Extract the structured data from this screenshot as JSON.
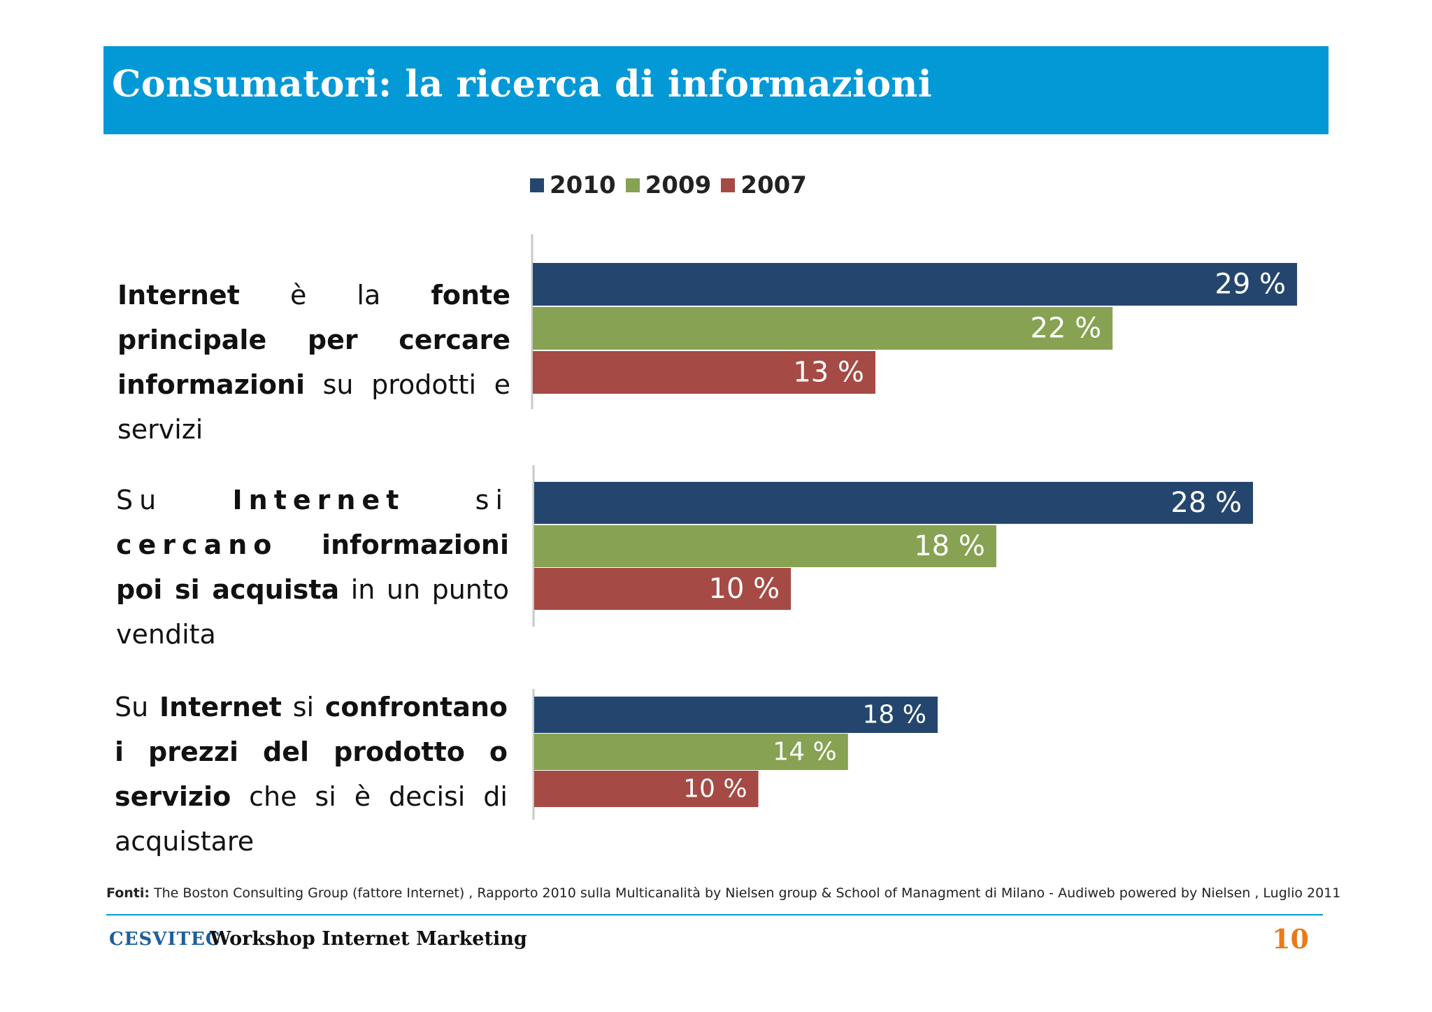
{
  "header": {
    "title": "Consumatori: la ricerca di informazioni"
  },
  "statements": [
    {
      "parts": [
        {
          "t": "Internet",
          "b": true
        },
        {
          "t": " è la ",
          "b": false
        },
        {
          "t": "fonte principale per cercare informazioni",
          "b": true
        },
        {
          "t": " su prodotti e servizi",
          "b": false
        }
      ]
    },
    {
      "parts": [
        {
          "t": "Su ",
          "b": false,
          "s": true
        },
        {
          "t": "Internet",
          "b": true,
          "s": true
        },
        {
          "t": " si ",
          "b": false,
          "s": true
        },
        {
          "t": "cercano",
          "b": true,
          "s": true
        },
        {
          "t": " informazioni poi si acquista",
          "b": true
        },
        {
          "t": " in un punto vendita",
          "b": false
        }
      ]
    },
    {
      "parts": [
        {
          "t": "Su ",
          "b": false
        },
        {
          "t": "Internet",
          "b": true
        },
        {
          "t": " si ",
          "b": false
        },
        {
          "t": "confrontano i prezzi del prodotto o servizio",
          "b": true
        },
        {
          "t": " che si è decisi di acquistare",
          "b": false
        }
      ]
    }
  ],
  "chart_data": {
    "type": "bar",
    "orientation": "horizontal",
    "categories": [
      "Internet è la fonte principale per cercare informazioni su prodotti e servizi",
      "Su Internet si cercano informazioni poi si acquista in un punto vendita",
      "Su Internet si confrontano i prezzi del prodotto o servizio che si è decisi di acquistare"
    ],
    "series": [
      {
        "name": "2010",
        "color": "#24466e",
        "values": [
          29,
          28,
          18
        ],
        "labels": [
          "29 %",
          "28 %",
          "18 %"
        ]
      },
      {
        "name": "2009",
        "color": "#86a252",
        "values": [
          22,
          18,
          14
        ],
        "labels": [
          "22 %",
          "18 %",
          "14 %"
        ]
      },
      {
        "name": "2007",
        "color": "#a54a44",
        "values": [
          13,
          10,
          10
        ],
        "labels": [
          "13 %",
          "10 %",
          "10 %"
        ]
      }
    ],
    "legend": "top",
    "unit": "%",
    "grid": false
  },
  "footer": {
    "sources_label": "Fonti:",
    "sources_text": " The Boston Consulting Group (fattore Internet) , Rapporto 2010 sulla Multicanalità by Nielsen group & School of Managment di Milano -  Audiweb powered by Nielsen , Luglio 2011",
    "logo_text": "CESVITEC",
    "workshop_title": "Workshop Internet Marketing",
    "page_number": "10"
  }
}
